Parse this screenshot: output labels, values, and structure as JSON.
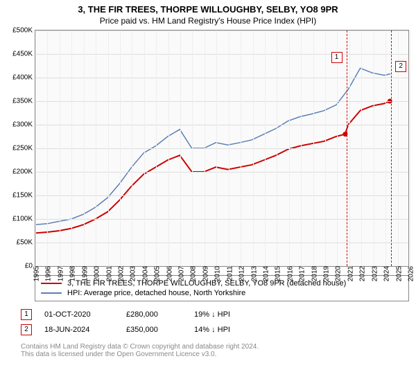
{
  "title_line1": "3, THE FIR TREES, THORPE WILLOUGHBY, SELBY, YO8 9PR",
  "title_line2": "Price paid vs. HM Land Registry's House Price Index (HPI)",
  "chart": {
    "ylim": [
      0,
      500000
    ],
    "ytick_step": 50000,
    "ytick_labels": [
      "£0",
      "£50K",
      "£100K",
      "£150K",
      "£200K",
      "£250K",
      "£300K",
      "£350K",
      "£400K",
      "£450K",
      "£500K"
    ],
    "xlim": [
      1995,
      2026
    ],
    "xticks": [
      1995,
      1996,
      1997,
      1998,
      1999,
      2000,
      2001,
      2002,
      2003,
      2004,
      2005,
      2006,
      2007,
      2008,
      2009,
      2010,
      2011,
      2012,
      2013,
      2014,
      2015,
      2016,
      2017,
      2018,
      2019,
      2020,
      2021,
      2022,
      2023,
      2024,
      2025,
      2026
    ],
    "background_color": "#fafafa",
    "grid_color": "#dddddd",
    "series": [
      {
        "name": "price_paid",
        "color": "#cc0000",
        "width": 2,
        "x": [
          1995,
          1996,
          1997,
          1998,
          1999,
          2000,
          2001,
          2002,
          2003,
          2004,
          2005,
          2006,
          2007,
          2008,
          2009,
          2010,
          2011,
          2012,
          2013,
          2014,
          2015,
          2016,
          2017,
          2018,
          2019,
          2020,
          2020.75,
          2021,
          2022,
          2023,
          2024,
          2024.46
        ],
        "y": [
          70000,
          72000,
          75000,
          80000,
          88000,
          100000,
          115000,
          140000,
          170000,
          195000,
          210000,
          225000,
          235000,
          200000,
          200000,
          210000,
          205000,
          210000,
          215000,
          225000,
          235000,
          248000,
          255000,
          260000,
          265000,
          275000,
          280000,
          300000,
          330000,
          340000,
          345000,
          350000
        ]
      },
      {
        "name": "hpi",
        "color": "#5b7fb5",
        "width": 1.5,
        "x": [
          1995,
          1996,
          1997,
          1998,
          1999,
          2000,
          2001,
          2002,
          2003,
          2004,
          2005,
          2006,
          2007,
          2008,
          2009,
          2010,
          2011,
          2012,
          2013,
          2014,
          2015,
          2016,
          2017,
          2018,
          2019,
          2020,
          2021,
          2022,
          2023,
          2024,
          2024.5
        ],
        "y": [
          88000,
          90000,
          95000,
          100000,
          110000,
          125000,
          145000,
          175000,
          210000,
          240000,
          255000,
          275000,
          290000,
          250000,
          250000,
          262000,
          257000,
          262000,
          268000,
          280000,
          292000,
          308000,
          317000,
          323000,
          330000,
          342000,
          375000,
          420000,
          410000,
          405000,
          408000
        ]
      }
    ],
    "markers": [
      {
        "n": "1",
        "x": 2020.75,
        "y": 280000,
        "label_y": 455000
      },
      {
        "n": "2",
        "x": 2024.46,
        "y": 350000,
        "label_y": 435000
      }
    ]
  },
  "legend": {
    "items": [
      {
        "color": "#cc0000",
        "label": "3, THE FIR TREES, THORPE WILLOUGHBY, SELBY, YO8 9PR (detached house)"
      },
      {
        "color": "#5b7fb5",
        "label": "HPI: Average price, detached house, North Yorkshire"
      }
    ]
  },
  "sales": [
    {
      "n": "1",
      "date": "01-OCT-2020",
      "price": "£280,000",
      "delta": "19% ↓ HPI"
    },
    {
      "n": "2",
      "date": "18-JUN-2024",
      "price": "£350,000",
      "delta": "14% ↓ HPI"
    }
  ],
  "footer_line1": "Contains HM Land Registry data © Crown copyright and database right 2024.",
  "footer_line2": "This data is licensed under the Open Government Licence v3.0.",
  "colors": {
    "marker_border": "#cc0000",
    "footer_text": "#888888"
  }
}
